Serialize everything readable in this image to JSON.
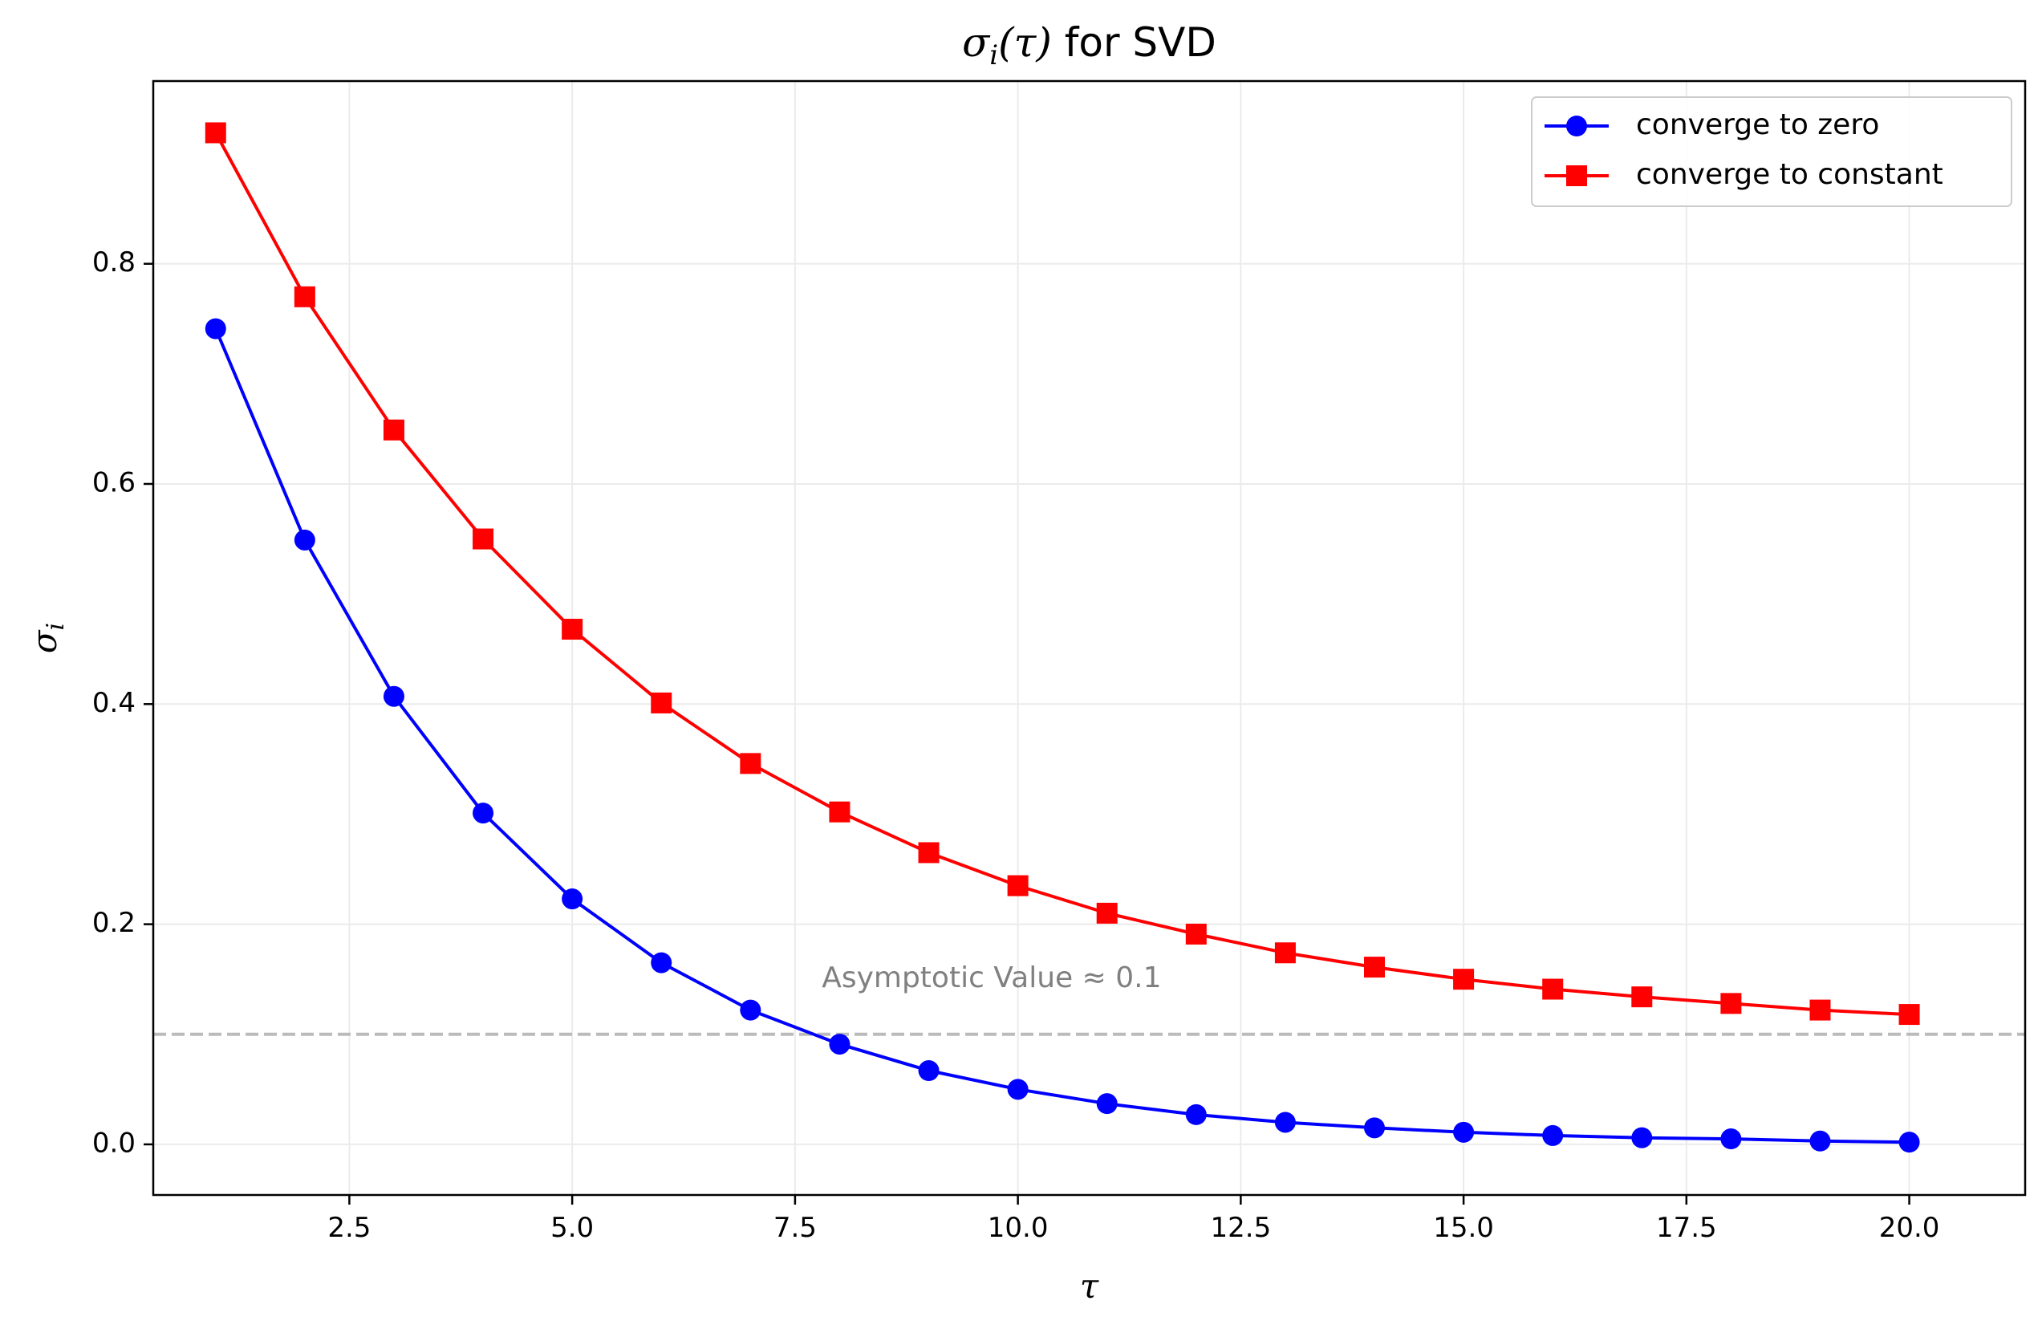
{
  "chart_data": {
    "type": "line",
    "title": "σi(τ) for SVD",
    "title_parts": {
      "main": "σ",
      "sub": "i",
      "arg": "(τ)",
      "suffix": " for SVD"
    },
    "xlabel": "τ",
    "ylabel": "σi",
    "ylabel_parts": {
      "main": "σ",
      "sub": "i"
    },
    "xlim": [
      0.3,
      21.3
    ],
    "ylim": [
      -0.046,
      0.966
    ],
    "x_ticks": [
      2.5,
      5.0,
      7.5,
      10.0,
      12.5,
      15.0,
      17.5,
      20.0
    ],
    "x_tick_labels": [
      "2.5",
      "5.0",
      "7.5",
      "10.0",
      "12.5",
      "15.0",
      "17.5",
      "20.0"
    ],
    "y_ticks": [
      0.0,
      0.2,
      0.4,
      0.6,
      0.8
    ],
    "y_tick_labels": [
      "0.0",
      "0.2",
      "0.4",
      "0.6",
      "0.8"
    ],
    "grid": true,
    "legend_position": "top-right",
    "x": [
      1,
      2,
      3,
      4,
      5,
      6,
      7,
      8,
      9,
      10,
      11,
      12,
      13,
      14,
      15,
      16,
      17,
      18,
      19,
      20
    ],
    "series": [
      {
        "name": "converge to zero",
        "color": "#0000ff",
        "marker": "circle",
        "values": [
          0.741,
          0.549,
          0.407,
          0.301,
          0.223,
          0.165,
          0.122,
          0.091,
          0.067,
          0.05,
          0.037,
          0.027,
          0.02,
          0.015,
          0.011,
          0.008,
          0.006,
          0.005,
          0.003,
          0.002
        ]
      },
      {
        "name": "converge to constant",
        "color": "#ff0000",
        "marker": "square",
        "values": [
          0.919,
          0.77,
          0.649,
          0.55,
          0.468,
          0.401,
          0.346,
          0.302,
          0.265,
          0.235,
          0.21,
          0.191,
          0.174,
          0.161,
          0.15,
          0.141,
          0.134,
          0.128,
          0.122,
          0.118
        ]
      }
    ],
    "reference_line": {
      "y": 0.1,
      "color": "#bbbbbb",
      "style": "dashed"
    },
    "annotations": [
      {
        "text": "Asymptotic Value ≈ 0.1",
        "x": 7.8,
        "y": 0.15,
        "color": "#808080"
      }
    ]
  }
}
